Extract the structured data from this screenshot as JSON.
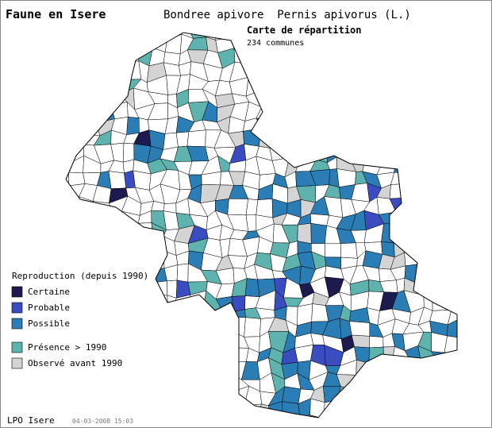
{
  "header": {
    "title": "Faune en Isere",
    "species": "Bondree apivore  Pernis apivorus (L.)",
    "map_title": "Carte de répartition",
    "count": "234 communes"
  },
  "legend": {
    "title": "Reproduction (depuis 1990)",
    "items": [
      {
        "label": "Certaine",
        "color": "#1c1a4e"
      },
      {
        "label": "Probable",
        "color": "#3b4cc0"
      },
      {
        "label": "Possible",
        "color": "#2a7db5"
      },
      {
        "label": "Présence > 1990",
        "color": "#5fb3ae"
      },
      {
        "label": "Observé avant 1990",
        "color": "#d4d4d4"
      }
    ]
  },
  "footer": {
    "source": "LPO Isere",
    "date": "04-03-2008 15:03"
  }
}
